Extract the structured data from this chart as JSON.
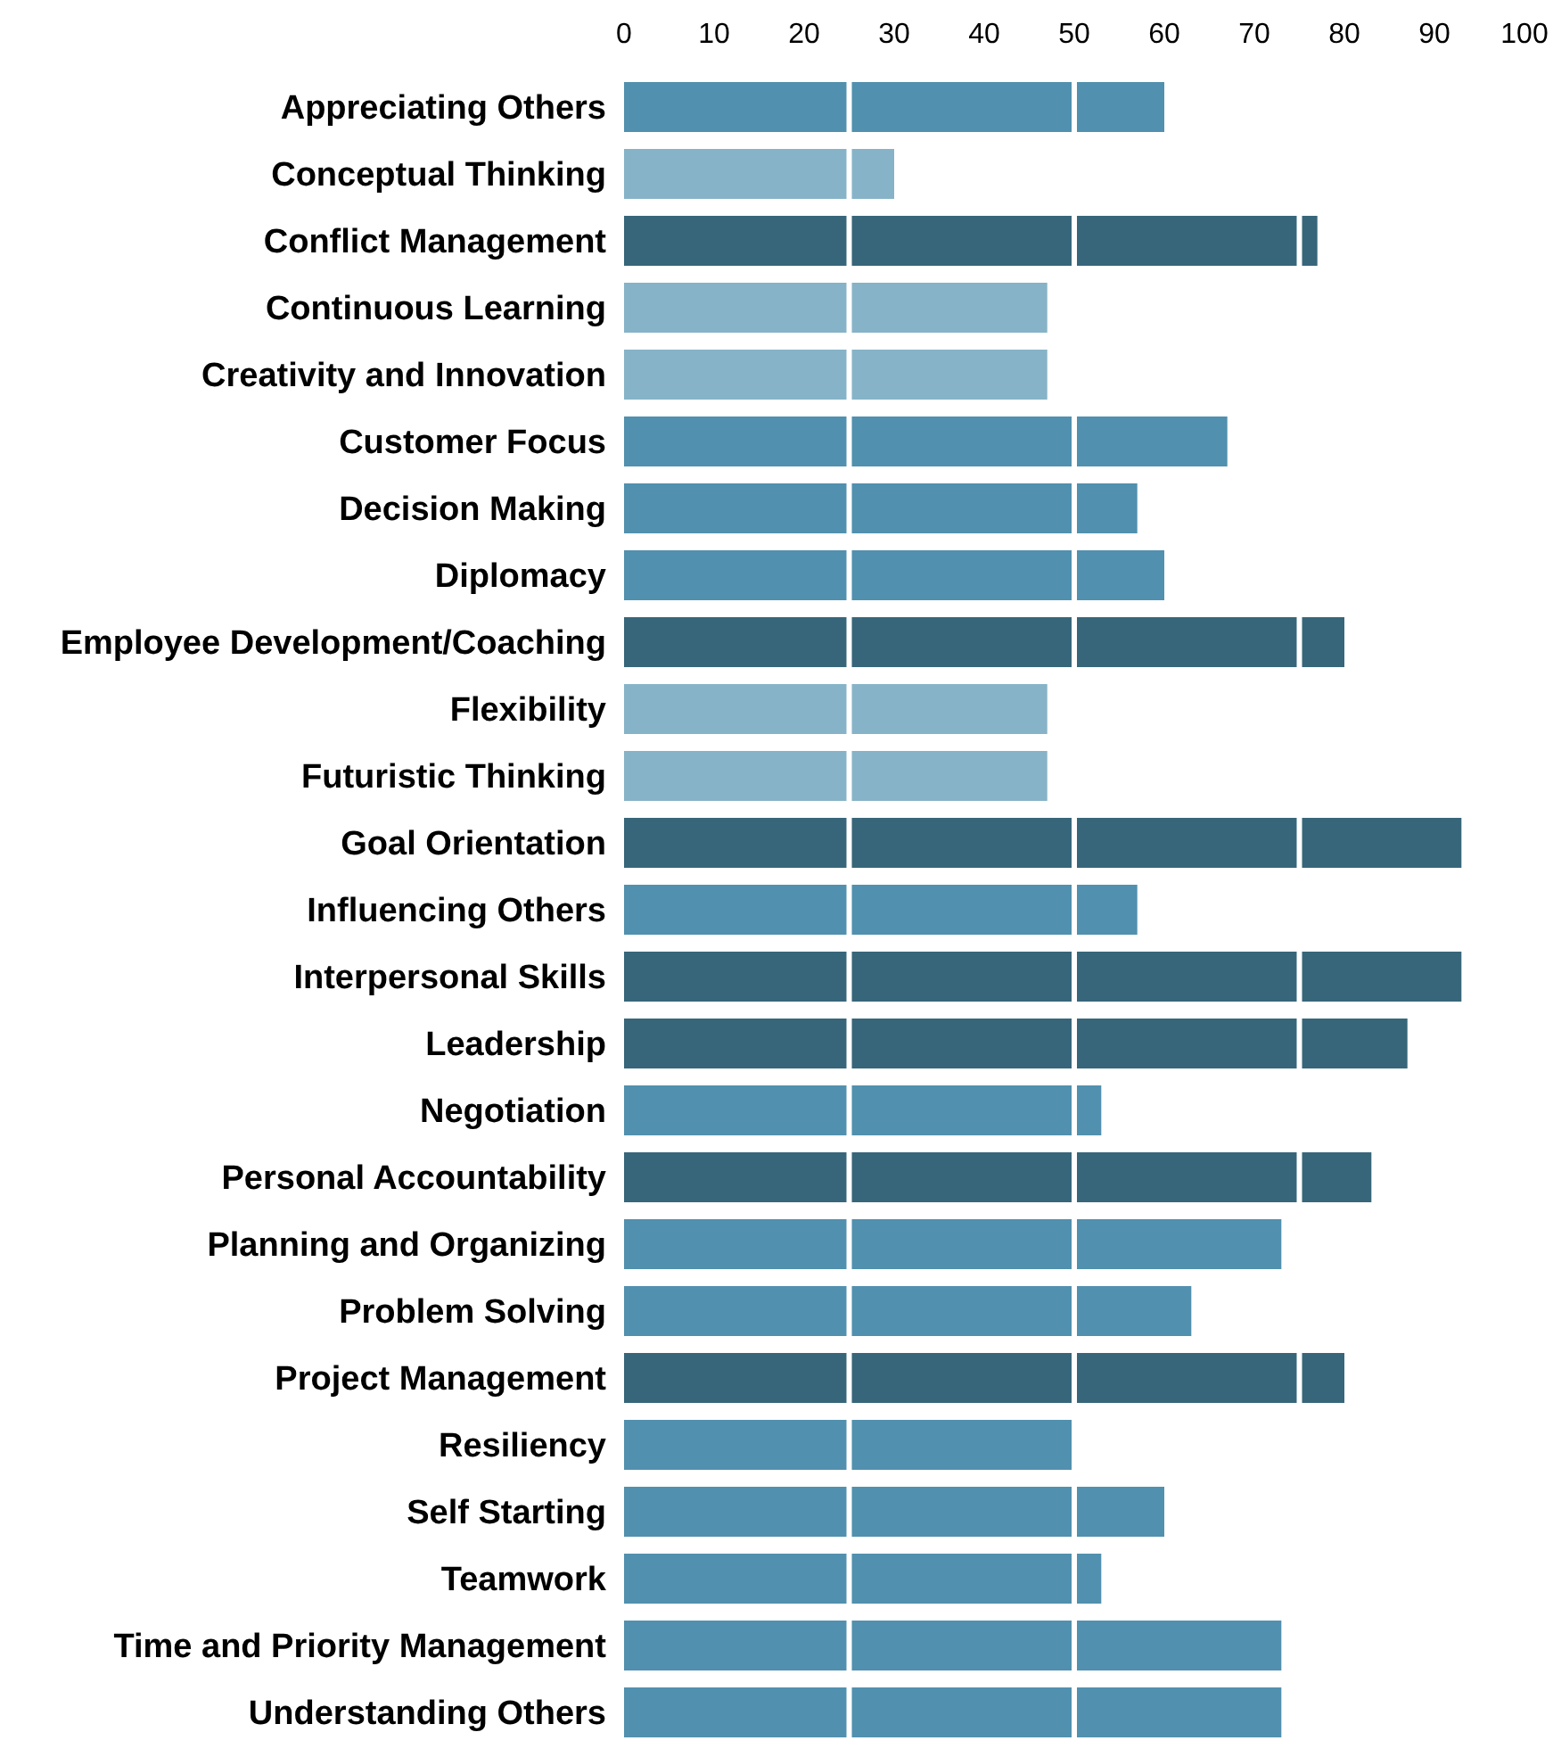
{
  "chart_data": {
    "type": "bar",
    "orientation": "horizontal",
    "categories": [
      "Appreciating Others",
      "Conceptual Thinking",
      "Conflict Management",
      "Continuous Learning",
      "Creativity and Innovation",
      "Customer Focus",
      "Decision Making",
      "Diplomacy",
      "Employee Development/Coaching",
      "Flexibility",
      "Futuristic Thinking",
      "Goal Orientation",
      "Influencing Others",
      "Interpersonal Skills",
      "Leadership",
      "Negotiation",
      "Personal Accountability",
      "Planning and Organizing",
      "Problem Solving",
      "Project Management",
      "Resiliency",
      "Self Starting",
      "Teamwork",
      "Time and Priority Management",
      "Understanding Others"
    ],
    "values": [
      60,
      30,
      77,
      47,
      47,
      67,
      57,
      60,
      80,
      47,
      47,
      93,
      57,
      93,
      87,
      53,
      83,
      73,
      63,
      80,
      50,
      60,
      53,
      73,
      73
    ],
    "colors": [
      "#5190ae",
      "#86b3c7",
      "#37667a",
      "#86b3c7",
      "#86b3c7",
      "#5190ae",
      "#5190ae",
      "#5190ae",
      "#37667a",
      "#86b3c7",
      "#86b3c7",
      "#37667a",
      "#5190ae",
      "#37667a",
      "#37667a",
      "#5190ae",
      "#37667a",
      "#5190ae",
      "#5190ae",
      "#37667a",
      "#5190ae",
      "#5190ae",
      "#5190ae",
      "#5190ae",
      "#5190ae"
    ],
    "xlim": [
      0,
      100
    ],
    "xticks": [
      0,
      10,
      20,
      30,
      40,
      50,
      60,
      70,
      80,
      90,
      100
    ],
    "ref_lines": [
      {
        "axis": "x",
        "value": 25,
        "color": "#ffffff"
      },
      {
        "axis": "x",
        "value": 50,
        "color": "#ffffff"
      },
      {
        "axis": "x",
        "value": 75,
        "color": "#ffffff"
      }
    ]
  }
}
